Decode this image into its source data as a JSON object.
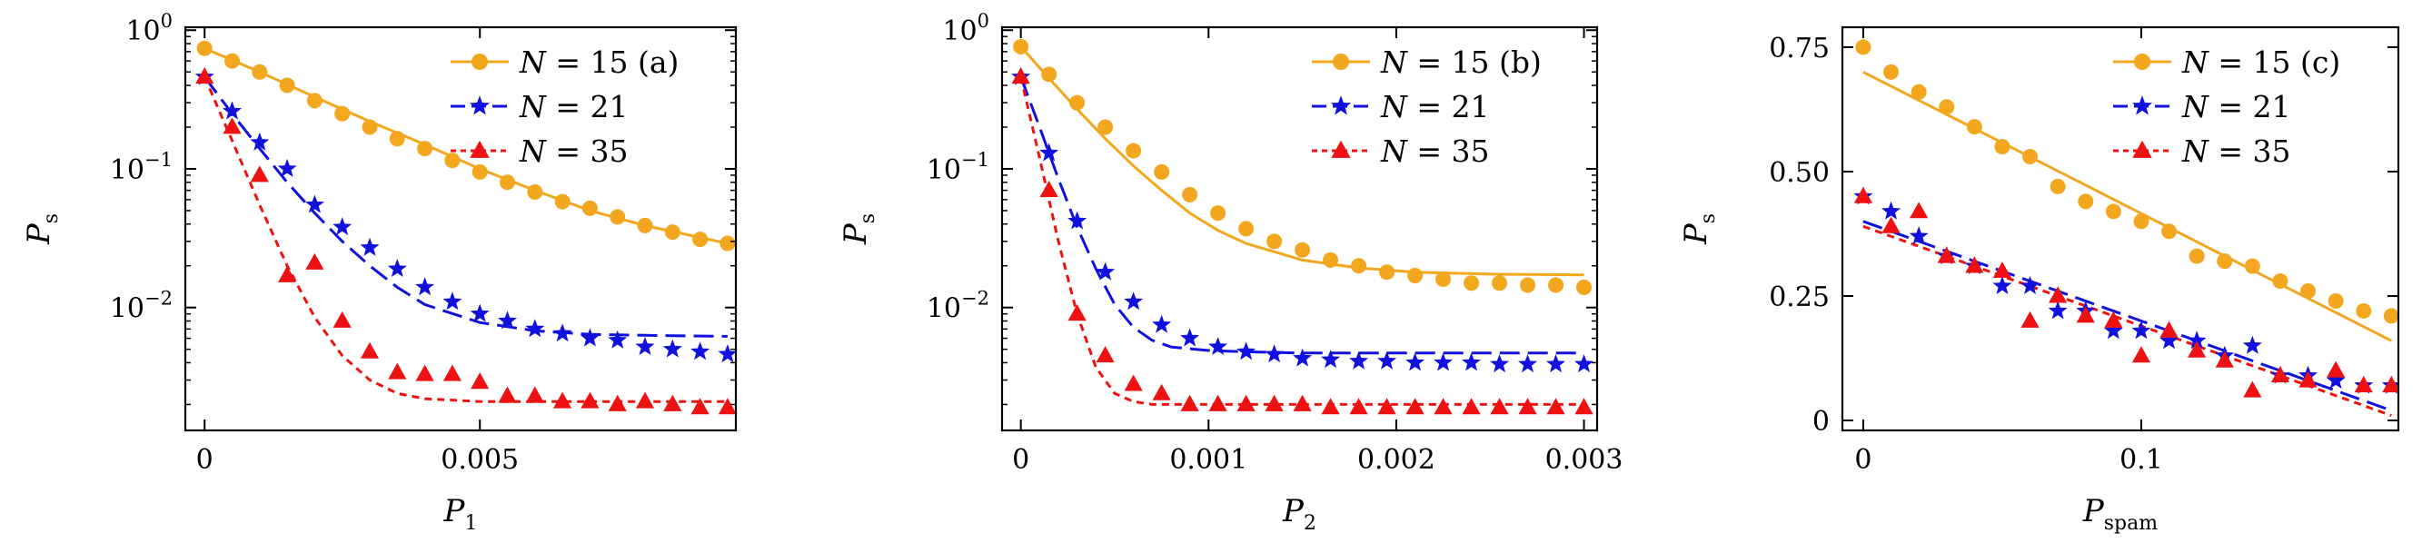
{
  "colors": {
    "n15": "#f2a71e",
    "n21": "#1111dd",
    "n35": "#ee1111"
  },
  "chart_data": [
    {
      "type": "scatter",
      "panel": "(a)",
      "xlabel": {
        "main": "P",
        "sub": "1"
      },
      "ylabel": {
        "main": "P",
        "sub": "s"
      },
      "xscale": "linear",
      "yscale": "log",
      "xlim": [
        -0.00035,
        0.00965
      ],
      "ylim": [
        0.0013,
        1.05
      ],
      "xticks": [
        0,
        0.005
      ],
      "xtick_labels": [
        "0",
        "0.005"
      ],
      "yticks": [
        1,
        0.1,
        0.01
      ],
      "ytick_labels": [
        {
          "base": "10",
          "exp": "0"
        },
        {
          "base": "10",
          "exp": "−1"
        },
        {
          "base": "10",
          "exp": "−2"
        }
      ],
      "legend_position": "top-right",
      "series": [
        {
          "name": "N = 15",
          "key": "n15",
          "marker": "circle",
          "line": "solid",
          "x": [
            0,
            0.0005,
            0.001,
            0.0015,
            0.002,
            0.0025,
            0.003,
            0.0035,
            0.004,
            0.0045,
            0.005,
            0.0055,
            0.006,
            0.0065,
            0.007,
            0.0075,
            0.008,
            0.0085,
            0.009,
            0.0095
          ],
          "y": [
            0.74,
            0.6,
            0.5,
            0.4,
            0.31,
            0.25,
            0.2,
            0.165,
            0.14,
            0.115,
            0.095,
            0.08,
            0.068,
            0.058,
            0.052,
            0.045,
            0.039,
            0.035,
            0.031,
            0.029
          ],
          "fit_x": [
            0,
            0.001,
            0.002,
            0.003,
            0.004,
            0.005,
            0.006,
            0.007,
            0.008,
            0.0095
          ],
          "fit_y": [
            0.74,
            0.5,
            0.33,
            0.22,
            0.15,
            0.1,
            0.07,
            0.05,
            0.039,
            0.029
          ]
        },
        {
          "name": "N = 21",
          "key": "n21",
          "marker": "star",
          "line": "dashed",
          "x": [
            0,
            0.0005,
            0.001,
            0.0015,
            0.002,
            0.0025,
            0.003,
            0.0035,
            0.004,
            0.0045,
            0.005,
            0.0055,
            0.006,
            0.0065,
            0.007,
            0.0075,
            0.008,
            0.0085,
            0.009,
            0.0095
          ],
          "y": [
            0.46,
            0.26,
            0.155,
            0.1,
            0.055,
            0.038,
            0.027,
            0.019,
            0.014,
            0.011,
            0.009,
            0.008,
            0.007,
            0.0065,
            0.006,
            0.0058,
            0.0052,
            0.005,
            0.0048,
            0.0046
          ],
          "fit_x": [
            0,
            0.0005,
            0.001,
            0.0015,
            0.002,
            0.0025,
            0.003,
            0.0035,
            0.004,
            0.005,
            0.006,
            0.007,
            0.008,
            0.0095
          ],
          "fit_y": [
            0.46,
            0.25,
            0.14,
            0.08,
            0.048,
            0.03,
            0.02,
            0.014,
            0.0105,
            0.0078,
            0.0068,
            0.0064,
            0.0063,
            0.0062
          ]
        },
        {
          "name": "N = 35",
          "key": "n35",
          "marker": "triangle",
          "line": "dotted",
          "x": [
            0,
            0.0005,
            0.001,
            0.0015,
            0.002,
            0.0025,
            0.003,
            0.0035,
            0.004,
            0.0045,
            0.005,
            0.0055,
            0.006,
            0.0065,
            0.007,
            0.0075,
            0.008,
            0.0085,
            0.009,
            0.0095
          ],
          "y": [
            0.46,
            0.2,
            0.09,
            0.017,
            0.021,
            0.008,
            0.0048,
            0.0034,
            0.0033,
            0.0033,
            0.0029,
            0.0023,
            0.0023,
            0.0021,
            0.0021,
            0.002,
            0.0021,
            0.002,
            0.0019,
            0.0019
          ],
          "fit_x": [
            0,
            0.0005,
            0.001,
            0.0015,
            0.002,
            0.0025,
            0.003,
            0.0035,
            0.004,
            0.005,
            0.006,
            0.007,
            0.008,
            0.0095
          ],
          "fit_y": [
            0.46,
            0.16,
            0.055,
            0.02,
            0.0085,
            0.0045,
            0.003,
            0.0024,
            0.0022,
            0.0021,
            0.0021,
            0.0021,
            0.0021,
            0.0021
          ]
        }
      ]
    },
    {
      "type": "scatter",
      "panel": "(b)",
      "xlabel": {
        "main": "P",
        "sub": "2"
      },
      "ylabel": {
        "main": "P",
        "sub": "s"
      },
      "xscale": "linear",
      "yscale": "log",
      "xlim": [
        -0.0001,
        0.00307
      ],
      "ylim": [
        0.0013,
        1.05
      ],
      "xticks": [
        0,
        0.001,
        0.002,
        0.003
      ],
      "xtick_labels": [
        "0",
        "0.001",
        "0.002",
        "0.003"
      ],
      "yticks": [
        1,
        0.1,
        0.01
      ],
      "ytick_labels": [
        {
          "base": "10",
          "exp": "0"
        },
        {
          "base": "10",
          "exp": "−1"
        },
        {
          "base": "10",
          "exp": "−2"
        }
      ],
      "legend_position": "top-right",
      "series": [
        {
          "name": "N = 15",
          "key": "n15",
          "marker": "circle",
          "line": "solid",
          "x": [
            0,
            0.00015,
            0.0003,
            0.00045,
            0.0006,
            0.00075,
            0.0009,
            0.00105,
            0.0012,
            0.00135,
            0.0015,
            0.00165,
            0.0018,
            0.00195,
            0.0021,
            0.00225,
            0.0024,
            0.00255,
            0.0027,
            0.00285,
            0.003
          ],
          "y": [
            0.76,
            0.48,
            0.3,
            0.2,
            0.135,
            0.095,
            0.065,
            0.048,
            0.037,
            0.03,
            0.026,
            0.022,
            0.02,
            0.018,
            0.017,
            0.016,
            0.015,
            0.015,
            0.0145,
            0.0145,
            0.014
          ],
          "fit_x": [
            0,
            0.00015,
            0.0003,
            0.00045,
            0.0006,
            0.00075,
            0.0009,
            0.00105,
            0.0012,
            0.0015,
            0.0018,
            0.0021,
            0.0025,
            0.003
          ],
          "fit_y": [
            0.76,
            0.45,
            0.27,
            0.165,
            0.105,
            0.07,
            0.048,
            0.036,
            0.029,
            0.022,
            0.0193,
            0.018,
            0.0174,
            0.0172
          ]
        },
        {
          "name": "N = 21",
          "key": "n21",
          "marker": "star",
          "line": "dashed",
          "x": [
            0,
            0.00015,
            0.0003,
            0.00045,
            0.0006,
            0.00075,
            0.0009,
            0.00105,
            0.0012,
            0.00135,
            0.0015,
            0.00165,
            0.0018,
            0.00195,
            0.0021,
            0.00225,
            0.0024,
            0.00255,
            0.0027,
            0.00285,
            0.003
          ],
          "y": [
            0.46,
            0.13,
            0.042,
            0.018,
            0.011,
            0.0075,
            0.006,
            0.0052,
            0.0048,
            0.0046,
            0.0043,
            0.0042,
            0.0041,
            0.0041,
            0.004,
            0.004,
            0.004,
            0.0039,
            0.0039,
            0.0039,
            0.0039
          ],
          "fit_x": [
            0,
            0.0001,
            0.0002,
            0.0003,
            0.0004,
            0.0005,
            0.0006,
            0.0007,
            0.0008,
            0.001,
            0.0012,
            0.0015,
            0.002,
            0.003
          ],
          "fit_y": [
            0.46,
            0.2,
            0.085,
            0.038,
            0.019,
            0.0105,
            0.0072,
            0.0058,
            0.0052,
            0.0049,
            0.0048,
            0.0047,
            0.0047,
            0.0047
          ]
        },
        {
          "name": "N = 35",
          "key": "n35",
          "marker": "triangle",
          "line": "dotted",
          "x": [
            0,
            0.00015,
            0.0003,
            0.00045,
            0.0006,
            0.00075,
            0.0009,
            0.00105,
            0.0012,
            0.00135,
            0.0015,
            0.00165,
            0.0018,
            0.00195,
            0.0021,
            0.00225,
            0.0024,
            0.00255,
            0.0027,
            0.00285,
            0.003
          ],
          "y": [
            0.46,
            0.07,
            0.009,
            0.0045,
            0.0028,
            0.0024,
            0.002,
            0.002,
            0.002,
            0.002,
            0.002,
            0.0019,
            0.0019,
            0.0019,
            0.0019,
            0.0019,
            0.0019,
            0.0019,
            0.0019,
            0.0019,
            0.0019
          ],
          "fit_x": [
            0,
            0.0001,
            0.0002,
            0.0003,
            0.0004,
            0.0005,
            0.0006,
            0.0007,
            0.0008,
            0.001,
            0.0015,
            0.002,
            0.003
          ],
          "fit_y": [
            0.46,
            0.12,
            0.03,
            0.009,
            0.0037,
            0.0024,
            0.0021,
            0.002,
            0.002,
            0.002,
            0.002,
            0.002,
            0.002
          ]
        }
      ]
    },
    {
      "type": "scatter",
      "panel": "(c)",
      "xlabel": {
        "main": "P",
        "sub": "spam"
      },
      "ylabel": {
        "main": "P",
        "sub": "s"
      },
      "xscale": "linear",
      "yscale": "linear",
      "xlim": [
        -0.0075,
        0.1925
      ],
      "ylim": [
        -0.02,
        0.79
      ],
      "xticks": [
        0,
        0.1
      ],
      "xtick_labels": [
        "0",
        "0.1"
      ],
      "yticks": [
        0,
        0.25,
        0.5,
        0.75
      ],
      "ytick_labels": [
        "0",
        "0.25",
        "0.50",
        "0.75"
      ],
      "legend_position": "top-right",
      "series": [
        {
          "name": "N = 15",
          "key": "n15",
          "marker": "circle",
          "line": "solid",
          "x": [
            0,
            0.01,
            0.02,
            0.03,
            0.04,
            0.05,
            0.06,
            0.07,
            0.08,
            0.09,
            0.1,
            0.11,
            0.12,
            0.13,
            0.14,
            0.15,
            0.16,
            0.17,
            0.18,
            0.19
          ],
          "y": [
            0.75,
            0.7,
            0.66,
            0.63,
            0.59,
            0.55,
            0.53,
            0.47,
            0.44,
            0.42,
            0.4,
            0.38,
            0.33,
            0.32,
            0.31,
            0.28,
            0.26,
            0.24,
            0.22,
            0.21
          ],
          "fit_x": [
            0,
            0.19
          ],
          "fit_y": [
            0.7,
            0.16
          ]
        },
        {
          "name": "N = 21",
          "key": "n21",
          "marker": "star",
          "line": "dashed",
          "x": [
            0,
            0.01,
            0.02,
            0.03,
            0.04,
            0.05,
            0.06,
            0.07,
            0.08,
            0.09,
            0.1,
            0.11,
            0.12,
            0.13,
            0.14,
            0.15,
            0.16,
            0.17,
            0.18,
            0.19
          ],
          "y": [
            0.45,
            0.42,
            0.37,
            0.33,
            0.31,
            0.27,
            0.27,
            0.22,
            0.22,
            0.18,
            0.18,
            0.16,
            0.16,
            0.13,
            0.15,
            0.09,
            0.09,
            0.08,
            0.07,
            0.07
          ],
          "fit_x": [
            0,
            0.19
          ],
          "fit_y": [
            0.4,
            0.02
          ]
        },
        {
          "name": "N = 35",
          "key": "n35",
          "marker": "triangle",
          "line": "dotted",
          "x": [
            0,
            0.01,
            0.02,
            0.03,
            0.04,
            0.05,
            0.06,
            0.07,
            0.08,
            0.09,
            0.1,
            0.11,
            0.12,
            0.13,
            0.14,
            0.15,
            0.16,
            0.17,
            0.18,
            0.19
          ],
          "y": [
            0.45,
            0.39,
            0.42,
            0.33,
            0.31,
            0.3,
            0.2,
            0.25,
            0.21,
            0.2,
            0.13,
            0.18,
            0.14,
            0.12,
            0.06,
            0.09,
            0.08,
            0.1,
            0.07,
            0.07
          ],
          "fit_x": [
            0,
            0.19
          ],
          "fit_y": [
            0.39,
            0.01
          ]
        }
      ]
    }
  ]
}
